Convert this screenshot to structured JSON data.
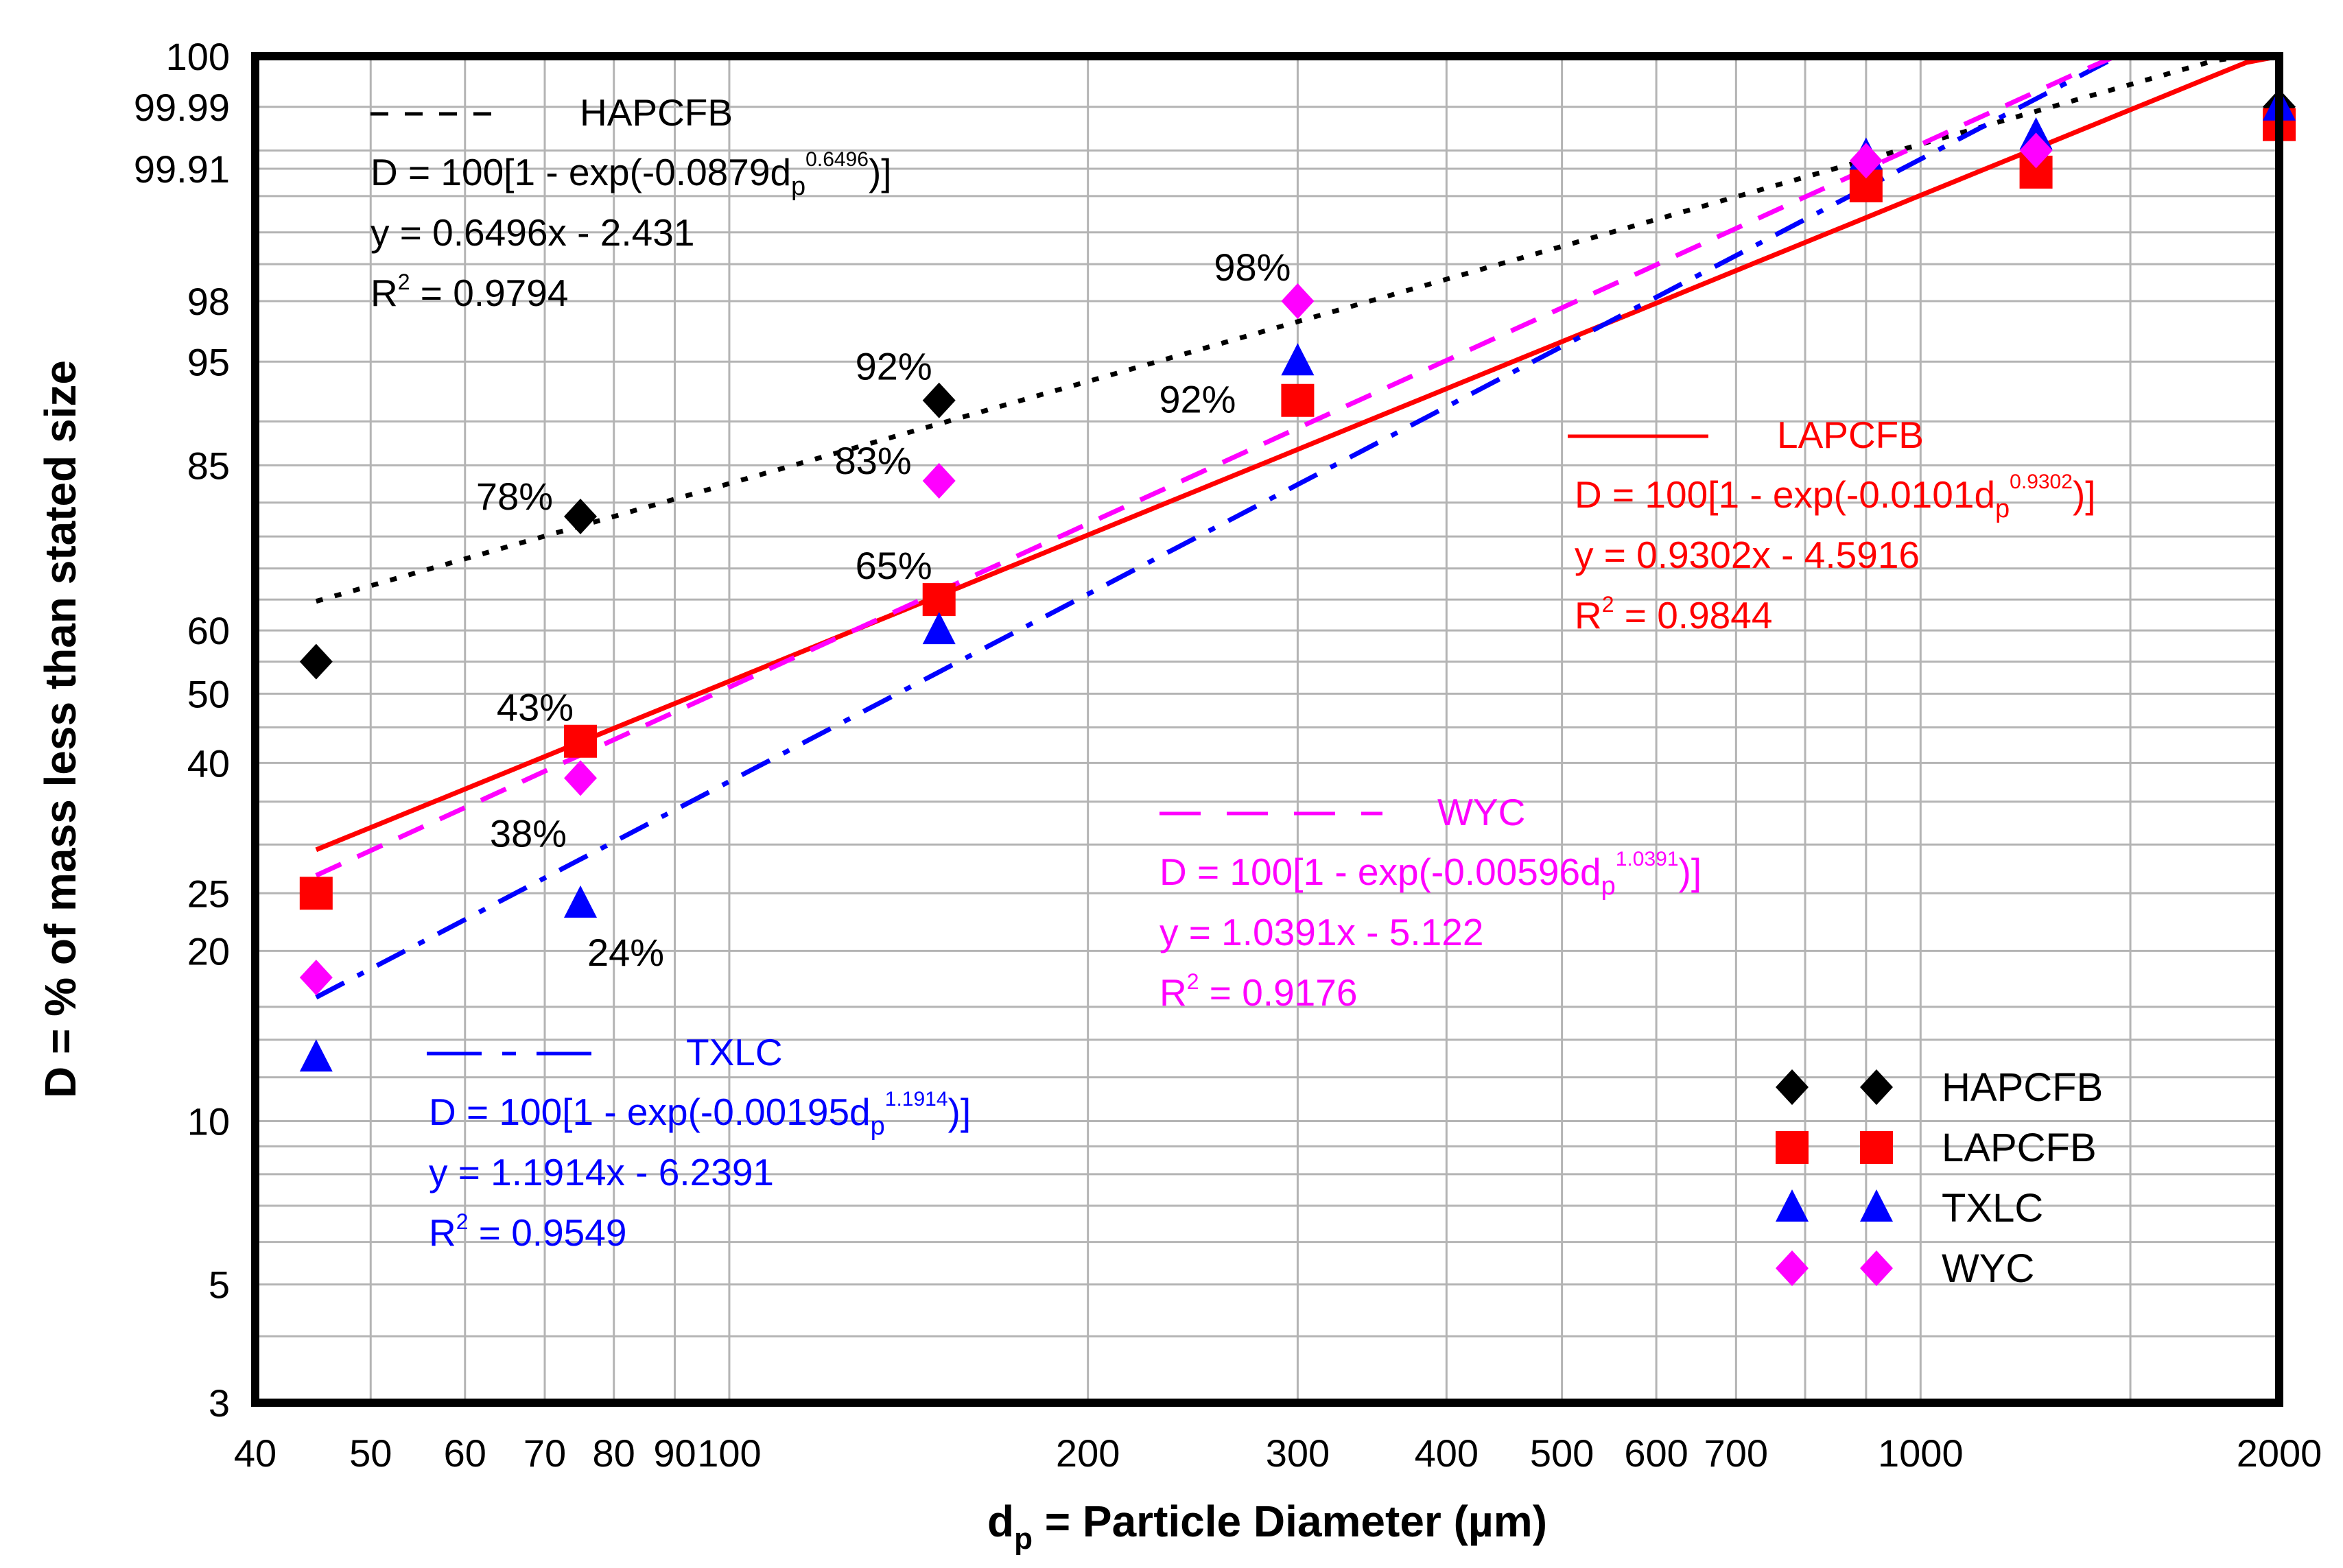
{
  "chart_data": {
    "type": "scatter",
    "x_scale": "log",
    "y_scale": "weibull",
    "xlim": [
      40,
      2000
    ],
    "ylim": [
      3,
      100
    ],
    "x_ticks": [
      40,
      50,
      60,
      70,
      80,
      90,
      100,
      200,
      300,
      400,
      500,
      600,
      700,
      1000,
      2000
    ],
    "x_tick_labels": [
      "40",
      "50",
      "60",
      "70",
      "80",
      "90",
      "100",
      "200",
      "300",
      "400",
      "500",
      "600",
      "700",
      "1000",
      "2000"
    ],
    "x_minor_gridlines": [
      800,
      900,
      1500
    ],
    "y_ticks": [
      3,
      5,
      10,
      20,
      25,
      40,
      50,
      60,
      85,
      95,
      98,
      99.91,
      99.99,
      100
    ],
    "y_tick_labels": [
      "3",
      "5",
      "10",
      "20",
      "25",
      "40",
      "50",
      "60",
      "85",
      "95",
      "98",
      "99.91",
      "99.99",
      "100"
    ],
    "y_minor_gridlines": [
      4,
      6,
      7,
      8,
      9,
      12,
      14,
      16,
      30,
      35,
      45,
      55,
      65,
      70,
      75,
      80,
      90,
      99,
      99.5,
      99.8,
      99.95
    ],
    "xlabel_main": "d",
    "xlabel_sub": "p",
    "xlabel_rest": " = Particle Diameter (µm)",
    "ylabel": "D = % of mass less than stated size",
    "legend_position": "bottom-right",
    "series": [
      {
        "name": "HAPCFB",
        "color": "#000000",
        "marker": "diamond",
        "line": "dotted",
        "x": [
          45,
          75,
          150,
          900,
          2000
        ],
        "y": [
          55,
          78,
          92,
          99.91,
          99.99
        ],
        "fit": {
          "a": 0.0879,
          "b": 0.6496,
          "x_from": 45,
          "x_to": 2000
        },
        "equation_line1": "D = 100[1 - exp(-0.0879d",
        "equation_sub": "p",
        "equation_sup": "0.6496",
        "equation_close": ")]",
        "regression": "y = 0.6496x - 2.431",
        "r2_label": "R",
        "r2_sup": "2",
        "r2_value": " = 0.9794"
      },
      {
        "name": "LAPCFB",
        "color": "#ff0000",
        "marker": "square",
        "line": "solid",
        "x": [
          45,
          75,
          150,
          300,
          900,
          1250,
          2000
        ],
        "y": [
          25,
          43,
          65,
          92,
          99.85,
          99.9,
          99.98
        ],
        "fit": {
          "a": 0.0101,
          "b": 0.9302,
          "x_from": 45,
          "x_to": 2000
        },
        "equation_line1": "D = 100[1 - exp(-0.0101d",
        "equation_sub": "p",
        "equation_sup": "0.9302",
        "equation_close": ")]",
        "regression": "y = 0.9302x - 4.5916",
        "r2_label": "R",
        "r2_sup": "2",
        "r2_value": " = 0.9844"
      },
      {
        "name": "TXLC",
        "color": "#0000ff",
        "marker": "triangle",
        "line": "dash-dot",
        "x": [
          45,
          75,
          150,
          300,
          900,
          1250,
          2000
        ],
        "y": [
          13,
          24,
          60,
          95,
          99.94,
          99.97,
          99.99
        ],
        "fit": {
          "a": 0.00195,
          "b": 1.1914,
          "x_from": 45,
          "x_to": 2000
        },
        "equation_line1": "D = 100[1 - exp(-0.00195d",
        "equation_sub": "p",
        "equation_sup": "1.1914",
        "equation_close": ")]",
        "regression": "y = 1.1914x - 6.2391",
        "r2_label": "R",
        "r2_sup": "2",
        "r2_value": " = 0.9549"
      },
      {
        "name": "WYC",
        "color": "#ff00ff",
        "marker": "diamond",
        "line": "dashed",
        "x": [
          45,
          75,
          150,
          300,
          900,
          1250
        ],
        "y": [
          18,
          38,
          83,
          98,
          99.93,
          99.95
        ],
        "fit": {
          "a": 0.00596,
          "b": 1.0391,
          "x_from": 45,
          "x_to": 2000
        },
        "equation_line1": "D = 100[1 - exp(-0.00596d",
        "equation_sub": "p",
        "equation_sup": "1.0391",
        "equation_close": ")]",
        "regression": "y = 1.0391x - 5.122",
        "r2_label": "R",
        "r2_sup": "2",
        "r2_value": " = 0.9176"
      }
    ],
    "annotations": [
      {
        "text": "92%",
        "x": 150,
        "y": 92,
        "anchor": "above-left"
      },
      {
        "text": "78%",
        "x": 75,
        "y": 78,
        "anchor": "left"
      },
      {
        "text": "98%",
        "x": 300,
        "y": 98,
        "anchor": "above-left"
      },
      {
        "text": "92%",
        "x": 300,
        "y": 92,
        "anchor": "left-far"
      },
      {
        "text": "83%",
        "x": 150,
        "y": 83,
        "anchor": "left"
      },
      {
        "text": "65%",
        "x": 150,
        "y": 65,
        "anchor": "above-left"
      },
      {
        "text": "43%",
        "x": 75,
        "y": 43,
        "anchor": "above-left"
      },
      {
        "text": "38%",
        "x": 75,
        "y": 38,
        "anchor": "below-left"
      },
      {
        "text": "24%",
        "x": 75,
        "y": 24,
        "anchor": "below-right"
      }
    ]
  }
}
